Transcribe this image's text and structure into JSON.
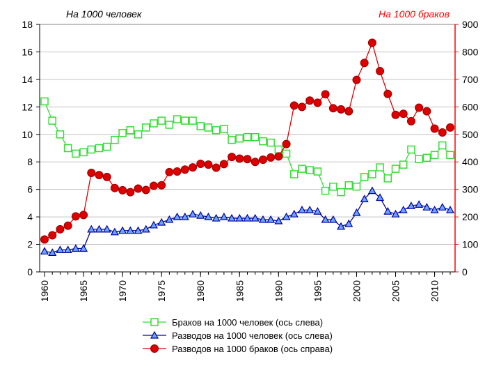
{
  "chart_data": {
    "type": "line",
    "left_axis": {
      "label": "На 1000 человек",
      "range": [
        0,
        18
      ],
      "ticks": [
        0,
        2,
        4,
        6,
        8,
        10,
        12,
        14,
        16,
        18
      ],
      "color": "#000000"
    },
    "right_axis": {
      "label": "На 1000 браков",
      "range": [
        0,
        900
      ],
      "ticks": [
        0,
        100,
        200,
        300,
        400,
        500,
        600,
        700,
        800,
        900
      ],
      "color": "#ff0000"
    },
    "x_range": [
      1960,
      2012
    ],
    "x_ticks": [
      1960,
      1965,
      1970,
      1975,
      1980,
      1985,
      1990,
      1995,
      2000,
      2005,
      2010
    ],
    "x": [
      1960,
      1961,
      1962,
      1963,
      1964,
      1965,
      1966,
      1967,
      1968,
      1969,
      1970,
      1971,
      1972,
      1973,
      1974,
      1975,
      1976,
      1977,
      1978,
      1979,
      1980,
      1981,
      1982,
      1983,
      1984,
      1985,
      1986,
      1987,
      1988,
      1989,
      1990,
      1991,
      1992,
      1993,
      1994,
      1995,
      1996,
      1997,
      1998,
      1999,
      2000,
      2001,
      2002,
      2003,
      2004,
      2005,
      2006,
      2007,
      2008,
      2009,
      2010,
      2011,
      2012
    ],
    "series": [
      {
        "name": "Браков на 1000 человек (ось слева)",
        "axis": "left",
        "color": "#33dd33",
        "marker": "square",
        "values": [
          12.4,
          11.0,
          10.0,
          9.0,
          8.6,
          8.7,
          8.9,
          9.0,
          9.1,
          9.6,
          10.1,
          10.3,
          10.0,
          10.5,
          10.8,
          11.0,
          10.7,
          11.1,
          11.0,
          11.0,
          10.6,
          10.5,
          10.3,
          10.4,
          9.6,
          9.7,
          9.8,
          9.8,
          9.5,
          9.4,
          8.9,
          8.6,
          7.1,
          7.5,
          7.4,
          7.3,
          5.9,
          6.2,
          5.8,
          6.3,
          6.2,
          6.9,
          7.1,
          7.6,
          6.8,
          7.5,
          7.8,
          8.9,
          8.2,
          8.3,
          8.5,
          9.2,
          8.5
        ]
      },
      {
        "name": "Разводов на 1000 человек (ось слева)",
        "axis": "left",
        "color": "#000099",
        "marker": "triangle",
        "values": [
          1.5,
          1.4,
          1.6,
          1.6,
          1.7,
          1.7,
          3.1,
          3.1,
          3.1,
          2.9,
          3.0,
          3.0,
          3.0,
          3.1,
          3.4,
          3.6,
          3.8,
          4.0,
          4.0,
          4.2,
          4.1,
          4.0,
          3.9,
          4.0,
          3.9,
          3.9,
          3.9,
          3.9,
          3.8,
          3.8,
          3.7,
          4.0,
          4.2,
          4.5,
          4.5,
          4.4,
          3.8,
          3.8,
          3.3,
          3.5,
          4.3,
          5.3,
          5.9,
          5.4,
          4.4,
          4.2,
          4.5,
          4.8,
          4.9,
          4.7,
          4.5,
          4.7,
          4.5
        ]
      },
      {
        "name": "Разводов на 1000 браков (ось справа)",
        "axis": "right",
        "color": "#dd0000",
        "marker": "circle",
        "values": [
          118,
          133,
          155,
          168,
          202,
          207,
          360,
          352,
          345,
          305,
          297,
          290,
          303,
          298,
          313,
          315,
          363,
          365,
          372,
          380,
          393,
          390,
          379,
          392,
          418,
          412,
          410,
          400,
          408,
          416,
          420,
          465,
          605,
          600,
          623,
          615,
          646,
          595,
          591,
          584,
          698,
          760,
          833,
          730,
          647,
          571,
          575,
          548,
          597,
          584,
          521,
          507,
          525
        ]
      }
    ],
    "legend_position": "bottom-center"
  }
}
